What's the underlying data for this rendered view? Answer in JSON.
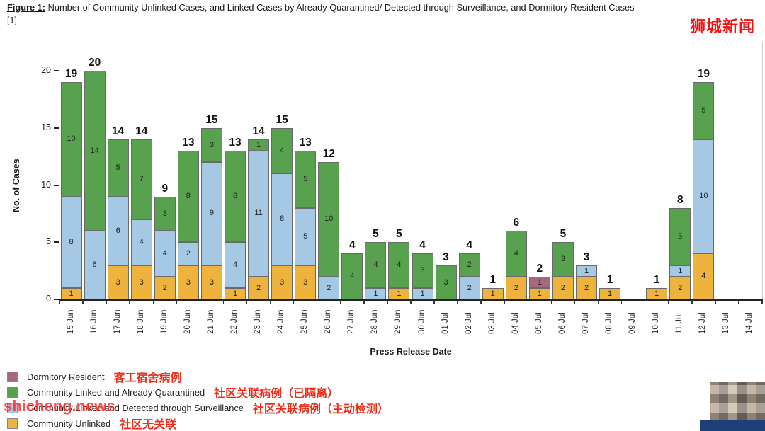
{
  "header": {
    "figure_label": "Figure 1:",
    "title_rest": " Number of Community Unlinked Cases, and Linked Cases by Already Quarantined/ Detected through Surveillance, and Dormitory Resident Cases",
    "footnote": "[1]"
  },
  "watermarks": {
    "top_right": "狮城新闻",
    "bottom_left": "shicheng.news"
  },
  "chart_data": {
    "type": "bar",
    "stacked": true,
    "title": "Figure 1: Number of Community Unlinked Cases, and Linked Cases by Already Quarantined/ Detected through Surveillance, and Dormitory Resident Cases [1]",
    "xlabel": "Press Release Date",
    "ylabel": "No. of Cases",
    "ylim": [
      0,
      21
    ],
    "yticks": [
      0,
      5,
      10,
      15,
      20
    ],
    "grid": false,
    "legend_position": "bottom-left",
    "categories": [
      "15 Jun",
      "16 Jun",
      "17 Jun",
      "18 Jun",
      "19 Jun",
      "20 Jun",
      "21 Jun",
      "22 Jun",
      "23 Jun",
      "24 Jun",
      "25 Jun",
      "26 Jun",
      "27 Jun",
      "28 Jun",
      "29 Jun",
      "30 Jun",
      "01 Jul",
      "02 Jul",
      "03 Jul",
      "04 Jul",
      "05 Jul",
      "06 Jul",
      "07 Jul",
      "08 Jul",
      "09 Jul",
      "10 Jul",
      "11 Jul",
      "12 Jul",
      "13 Jul",
      "14 Jul"
    ],
    "series": [
      {
        "name": "Community Unlinked",
        "color": "#EDB33C",
        "values": [
          1,
          0,
          3,
          3,
          2,
          3,
          3,
          1,
          2,
          3,
          3,
          0,
          0,
          0,
          1,
          0,
          0,
          0,
          1,
          2,
          1,
          2,
          2,
          1,
          0,
          1,
          2,
          4,
          0,
          0
        ]
      },
      {
        "name": "Community Linked and Detected through Surveillance",
        "color": "#A5C8E4",
        "values": [
          8,
          6,
          6,
          4,
          4,
          2,
          9,
          4,
          11,
          8,
          5,
          2,
          0,
          1,
          0,
          1,
          0,
          2,
          0,
          0,
          0,
          0,
          1,
          0,
          0,
          0,
          1,
          10,
          0,
          0
        ]
      },
      {
        "name": "Community Linked and Already Quarantined",
        "color": "#58A14E",
        "values": [
          10,
          14,
          5,
          7,
          3,
          8,
          3,
          8,
          1,
          4,
          5,
          10,
          4,
          4,
          4,
          3,
          3,
          2,
          0,
          4,
          0,
          3,
          0,
          0,
          0,
          0,
          5,
          5,
          0,
          0
        ]
      },
      {
        "name": "Dormitory Resident",
        "color": "#A5697B",
        "values": [
          0,
          0,
          0,
          0,
          0,
          0,
          0,
          0,
          0,
          0,
          0,
          0,
          0,
          0,
          0,
          0,
          0,
          0,
          0,
          0,
          1,
          0,
          0,
          0,
          0,
          0,
          0,
          0,
          0,
          0
        ]
      }
    ],
    "totals": [
      19,
      20,
      14,
      14,
      9,
      13,
      15,
      13,
      14,
      15,
      13,
      12,
      4,
      5,
      5,
      4,
      3,
      4,
      1,
      6,
      2,
      5,
      3,
      1,
      0,
      1,
      8,
      19,
      0,
      0
    ]
  },
  "legend": {
    "items": [
      {
        "label": "Dormitory Resident",
        "label_zh": "客工宿舍病例",
        "color": "#A5697B"
      },
      {
        "label": "Community Linked and Already Quarantined",
        "label_zh": "社区关联病例（已隔离）",
        "color": "#58A14E"
      },
      {
        "label": "Community Linked and Detected through Surveillance",
        "label_zh": "社区关联病例（主动检测）",
        "color": "#A5C8E4"
      },
      {
        "label": "Community Unlinked",
        "label_zh": "社区无关联",
        "color": "#EDB33C"
      }
    ]
  }
}
